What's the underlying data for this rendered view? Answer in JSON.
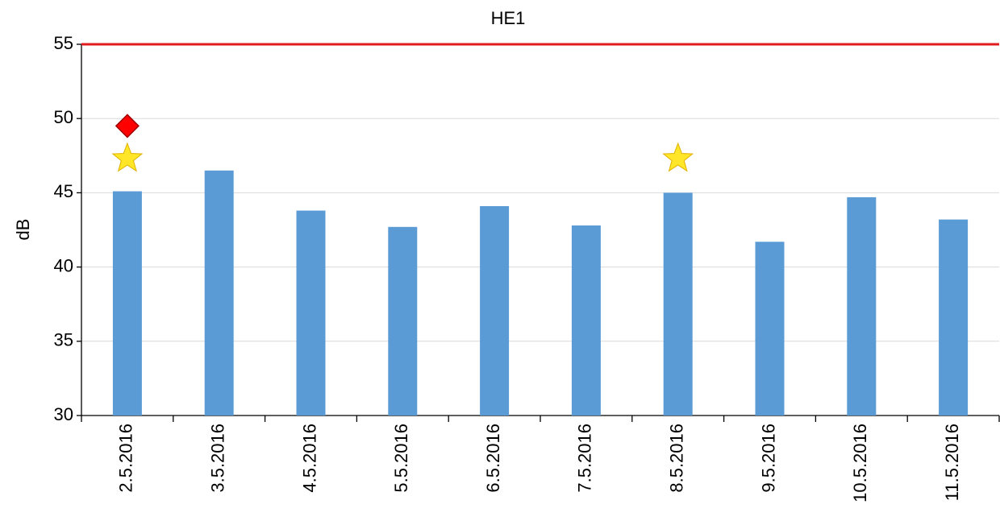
{
  "chart_data": {
    "type": "bar",
    "title": "HE1",
    "y_label": "dB",
    "categories": [
      "2.5.2016",
      "3.5.2016",
      "4.5.2016",
      "5.5.2016",
      "6.5.2016",
      "7.5.2016",
      "8.5.2016",
      "9.5.2016",
      "10.5.2016",
      "11.5.2016"
    ],
    "series": [
      {
        "type": "bar",
        "color": "#5b9bd5",
        "values": [
          45.1,
          46.5,
          43.8,
          42.7,
          44.1,
          42.8,
          45.0,
          41.7,
          44.7,
          43.2
        ]
      },
      {
        "type": "marker",
        "marker": "diamond",
        "color": "#ff0000",
        "values": [
          49.5,
          null,
          null,
          null,
          null,
          null,
          null,
          null,
          null,
          null
        ]
      },
      {
        "type": "marker",
        "marker": "star",
        "color": "#ffe629",
        "values": [
          47.3,
          null,
          null,
          null,
          null,
          null,
          47.3,
          null,
          null,
          null
        ]
      }
    ],
    "reference_lines": [
      {
        "value": 55,
        "color": "#e31a1c"
      }
    ],
    "ylim": [
      30,
      55
    ],
    "yticks": [
      30,
      35,
      40,
      45,
      50,
      55
    ],
    "grid": true
  }
}
